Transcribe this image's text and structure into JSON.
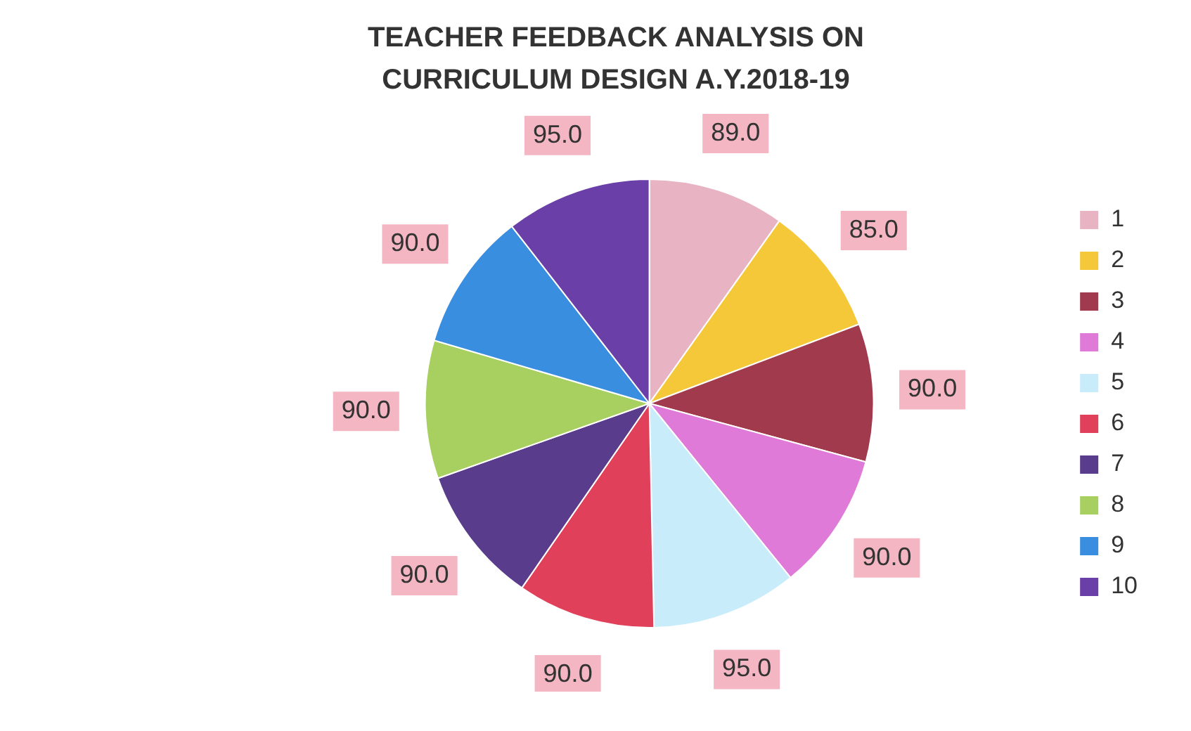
{
  "chart_data": {
    "type": "pie",
    "title": "TEACHER FEEDBACK ANALYSIS ON CURRICULUM DESIGN A.Y.2018-19",
    "categories": [
      "1",
      "2",
      "3",
      "4",
      "5",
      "6",
      "7",
      "8",
      "9",
      "10"
    ],
    "values": [
      89,
      85,
      90,
      90,
      95,
      90,
      90,
      90,
      90,
      95
    ],
    "value_labels": [
      "89.0",
      "85.0",
      "90.0",
      "90.0",
      "95.0",
      "90.0",
      "90.0",
      "90.0",
      "90.0",
      "95.0"
    ],
    "colors": [
      "#e8b4c4",
      "#f5c83a",
      "#a23a4e",
      "#e07ad8",
      "#c8ecfa",
      "#e0405a",
      "#5a3c8c",
      "#a8d060",
      "#3a8ee0",
      "#6a3fa8"
    ],
    "legend": "right"
  }
}
